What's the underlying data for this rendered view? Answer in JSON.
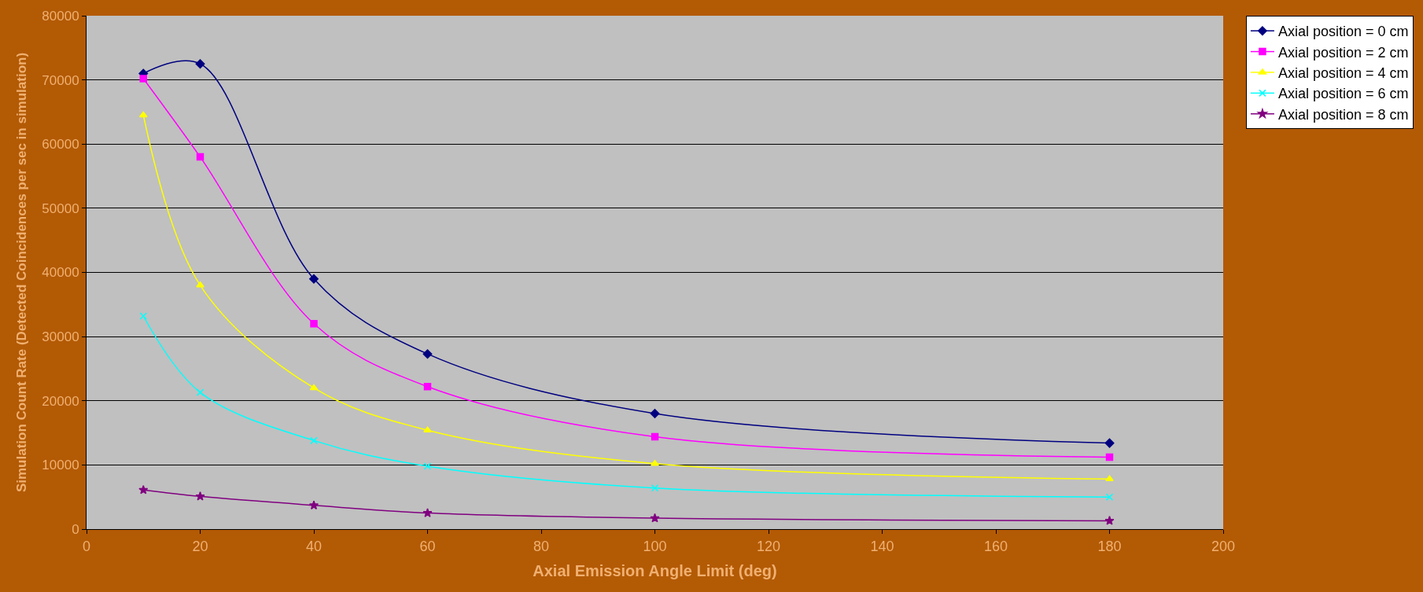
{
  "chart_data": {
    "type": "line",
    "xlabel": "Axial Emission Angle Limit (deg)",
    "ylabel": "Simulation Count Rate (Detected Coincidences per sec in simulation)",
    "x": [
      10,
      20,
      40,
      60,
      100,
      180
    ],
    "series": [
      {
        "name": "Axial position = 0 cm",
        "color": "#000080",
        "marker": "diamond",
        "values": [
          71000,
          72500,
          39000,
          27300,
          18000,
          13400
        ]
      },
      {
        "name": "Axial position = 2 cm",
        "color": "#ff00ff",
        "marker": "square",
        "values": [
          70200,
          58000,
          32000,
          22200,
          14400,
          11200
        ]
      },
      {
        "name": "Axial position = 4 cm",
        "color": "#ffff00",
        "marker": "triangle",
        "values": [
          64500,
          38000,
          22000,
          15400,
          10200,
          7800
        ]
      },
      {
        "name": "Axial position = 6 cm",
        "color": "#00ffff",
        "marker": "cross",
        "values": [
          33200,
          21300,
          13800,
          9800,
          6400,
          5000
        ]
      },
      {
        "name": "Axial position = 8 cm",
        "color": "#800080",
        "marker": "star",
        "values": [
          6100,
          5100,
          3700,
          2500,
          1700,
          1300
        ]
      }
    ],
    "xlim": [
      0,
      200
    ],
    "xticks": [
      0,
      20,
      40,
      60,
      80,
      100,
      120,
      140,
      160,
      180,
      200
    ],
    "ylim": [
      0,
      80000
    ],
    "yticks": [
      0,
      10000,
      20000,
      30000,
      40000,
      50000,
      60000,
      70000,
      80000
    ],
    "grid": "y",
    "legend": "right",
    "line_style": "solid"
  }
}
